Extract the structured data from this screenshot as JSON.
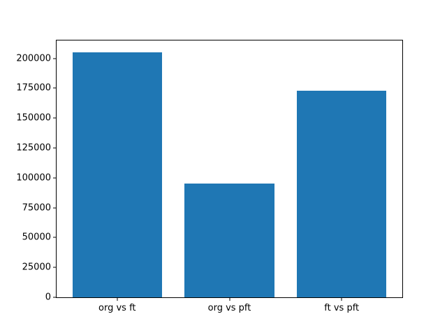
{
  "chart_data": {
    "type": "bar",
    "categories": [
      "org vs ft",
      "org vs pft",
      "ft vs pft"
    ],
    "values": [
      205000,
      95000,
      173000
    ],
    "title": "",
    "xlabel": "",
    "ylabel": "",
    "ylim": [
      0,
      215000
    ],
    "yticks": [
      0,
      25000,
      50000,
      75000,
      100000,
      125000,
      150000,
      175000,
      200000
    ],
    "bar_color": "#1f77b4",
    "axis_color": "#000000",
    "background_color": "#ffffff",
    "grid": false,
    "legend": null,
    "bar_width_fraction": 0.8
  }
}
